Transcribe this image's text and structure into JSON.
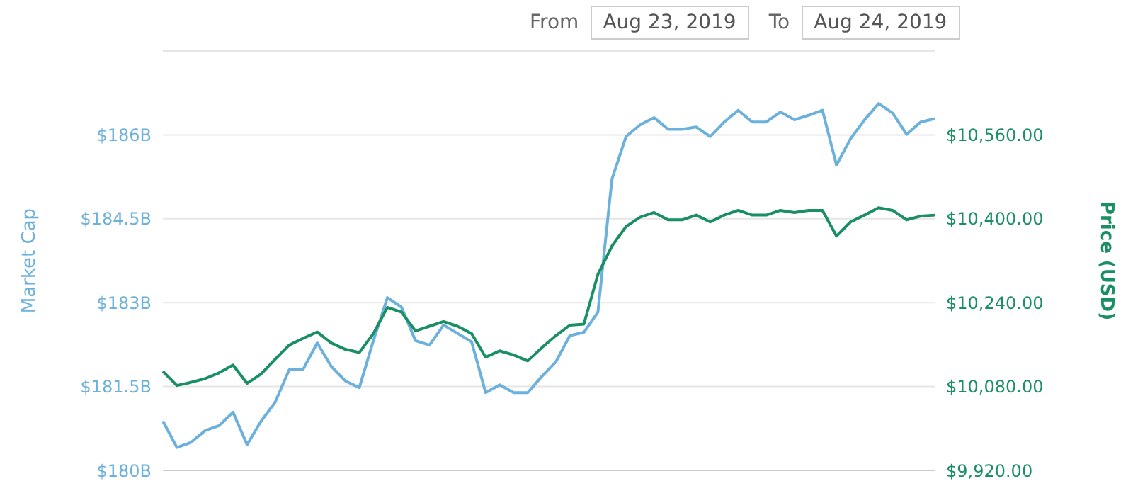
{
  "chart_data": {
    "type": "line",
    "annotations": [
      "From",
      "Aug 23, 2019",
      "To",
      "Aug 24, 2019"
    ],
    "ylabel": "Market Cap",
    "y2label": "Price (USD)",
    "categories": [
      null,
      null,
      null,
      null,
      null,
      null,
      null,
      null,
      null,
      null,
      null,
      null,
      null,
      null,
      null,
      null,
      null,
      null,
      null,
      null,
      null,
      null,
      null,
      null,
      null,
      null,
      null,
      null,
      null,
      null,
      null,
      null,
      null,
      null,
      null,
      null,
      null,
      null,
      null,
      null,
      null,
      null,
      null,
      null,
      null,
      null,
      null,
      null,
      null,
      null,
      null,
      null,
      null,
      null,
      null,
      null
    ],
    "series": [
      {
        "color": "#6bb1dc",
        "values": [
          180.88,
          180.41,
          180.5,
          180.71,
          180.8,
          181.04,
          180.46,
          180.88,
          181.22,
          181.8,
          181.81,
          182.28,
          181.86,
          181.6,
          181.48,
          182.32,
          183.09,
          182.92,
          182.32,
          182.24,
          182.6,
          182.45,
          182.3,
          181.39,
          181.53,
          181.39,
          181.39,
          181.68,
          181.94,
          182.41,
          182.47,
          182.83,
          185.21,
          185.97,
          186.18,
          186.31,
          186.1,
          186.1,
          186.14,
          185.97,
          186.23,
          186.44,
          186.23,
          186.23,
          186.41,
          186.27,
          186.35,
          186.44,
          185.46,
          185.93,
          186.27,
          186.56,
          186.39,
          186.01,
          186.23,
          186.29
        ]
      },
      {
        "color": "#1a8f63",
        "axis": "y2",
        "values": [
          10109,
          10082,
          10088,
          10095,
          10106,
          10121,
          10086,
          10104,
          10132,
          10159,
          10172,
          10184,
          10163,
          10151,
          10145,
          10181,
          10231,
          10222,
          10186,
          10195,
          10204,
          10195,
          10181,
          10136,
          10148,
          10140,
          10129,
          10154,
          10177,
          10197,
          10199,
          10294,
          10348,
          10385,
          10403,
          10412,
          10398,
          10398,
          10407,
          10394,
          10407,
          10416,
          10407,
          10407,
          10416,
          10412,
          10416,
          10416,
          10367,
          10394,
          10407,
          10421,
          10416,
          10398,
          10405,
          10407
        ]
      }
    ],
    "ylim": [
      180,
      187.5
    ],
    "yticks": [
      {
        "value": 180,
        "label": "$180B"
      },
      {
        "value": 181.5,
        "label": "$181.5B"
      },
      {
        "value": 183,
        "label": "$183B"
      },
      {
        "value": 184.5,
        "label": "$184.5B"
      },
      {
        "value": 186,
        "label": "$186B"
      }
    ],
    "y2lim": [
      9920,
      10720
    ],
    "y2ticks": [
      {
        "value": 9920,
        "label": "$9,920.00"
      },
      {
        "value": 10080,
        "label": "$10,080.00"
      },
      {
        "value": 10240,
        "label": "$10,240.00"
      },
      {
        "value": 10400,
        "label": "$10,400.00"
      },
      {
        "value": 10560,
        "label": "$10,560.00"
      }
    ],
    "grid": "y",
    "legend": false,
    "marker": "none",
    "line_style": "solid"
  }
}
